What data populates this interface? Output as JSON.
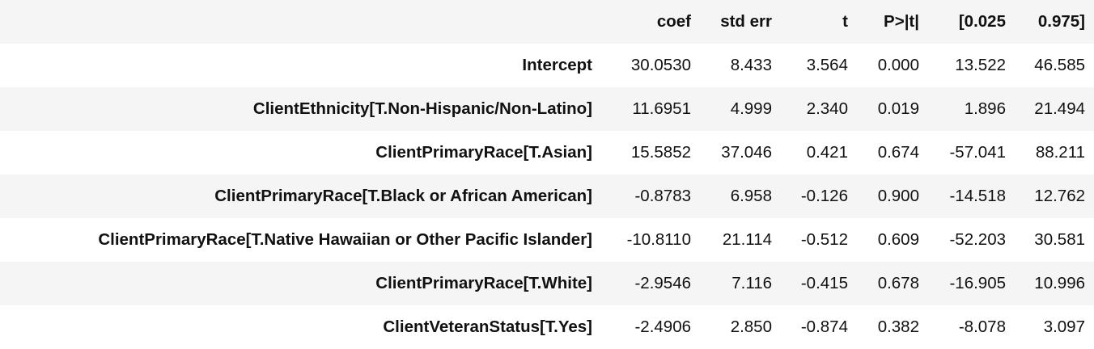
{
  "table": {
    "columns": [
      "",
      "coef",
      "std err",
      "t",
      "P>|t|",
      "[0.025",
      "0.975]"
    ],
    "rows": [
      {
        "label": "Intercept",
        "coef": "30.0530",
        "std_err": "8.433",
        "t": "3.564",
        "p": "0.000",
        "ci_low": "13.522",
        "ci_high": "46.585"
      },
      {
        "label": "ClientEthnicity[T.Non-Hispanic/Non-Latino]",
        "coef": "11.6951",
        "std_err": "4.999",
        "t": "2.340",
        "p": "0.019",
        "ci_low": "1.896",
        "ci_high": "21.494"
      },
      {
        "label": "ClientPrimaryRace[T.Asian]",
        "coef": "15.5852",
        "std_err": "37.046",
        "t": "0.421",
        "p": "0.674",
        "ci_low": "-57.041",
        "ci_high": "88.211"
      },
      {
        "label": "ClientPrimaryRace[T.Black or African American]",
        "coef": "-0.8783",
        "std_err": "6.958",
        "t": "-0.126",
        "p": "0.900",
        "ci_low": "-14.518",
        "ci_high": "12.762"
      },
      {
        "label": "ClientPrimaryRace[T.Native Hawaiian or Other Pacific Islander]",
        "coef": "-10.8110",
        "std_err": "21.114",
        "t": "-0.512",
        "p": "0.609",
        "ci_low": "-52.203",
        "ci_high": "30.581"
      },
      {
        "label": "ClientPrimaryRace[T.White]",
        "coef": "-2.9546",
        "std_err": "7.116",
        "t": "-0.415",
        "p": "0.678",
        "ci_low": "-16.905",
        "ci_high": "10.996"
      },
      {
        "label": "ClientVeteranStatus[T.Yes]",
        "coef": "-2.4906",
        "std_err": "2.850",
        "t": "-0.874",
        "p": "0.382",
        "ci_low": "-8.078",
        "ci_high": "3.097"
      }
    ]
  }
}
